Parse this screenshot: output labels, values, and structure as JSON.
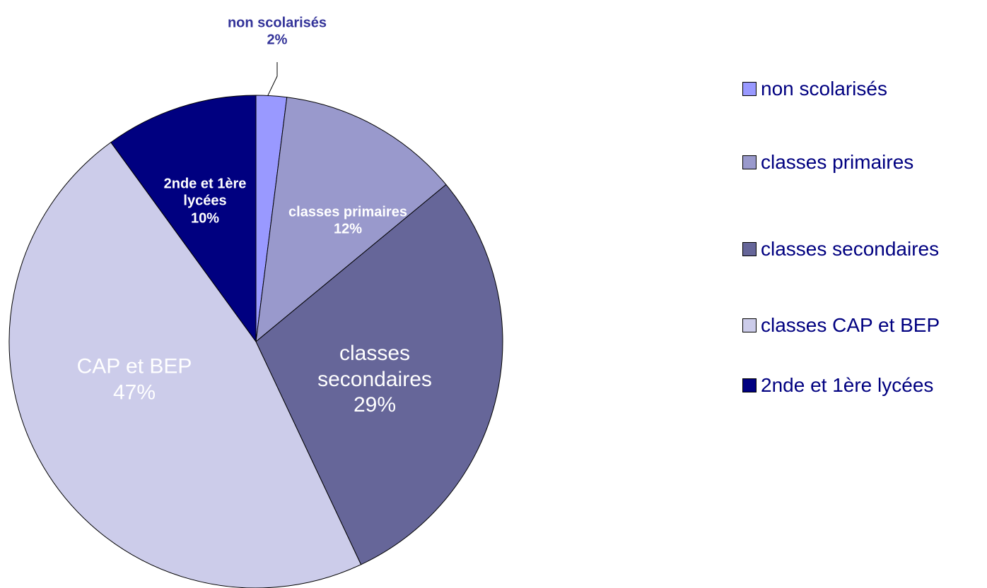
{
  "chart_data": {
    "type": "pie",
    "categories": [
      "non scolarisés",
      "classes primaires",
      "classes secondaires",
      "classes CAP et BEP",
      "2nde et 1ère lycées"
    ],
    "values": [
      2,
      12,
      29,
      47,
      10
    ],
    "value_labels": [
      "2%",
      "12%",
      "29%",
      "47%",
      "10%"
    ],
    "slice_labels": [
      "non scolarisés",
      "classes primaires",
      "classes secondaires",
      "CAP et BEP",
      "2nde et 1ère lycées"
    ],
    "colors": [
      "#9999ff",
      "#9999cc",
      "#666699",
      "#ccccea",
      "#000080"
    ],
    "legend": "right"
  }
}
